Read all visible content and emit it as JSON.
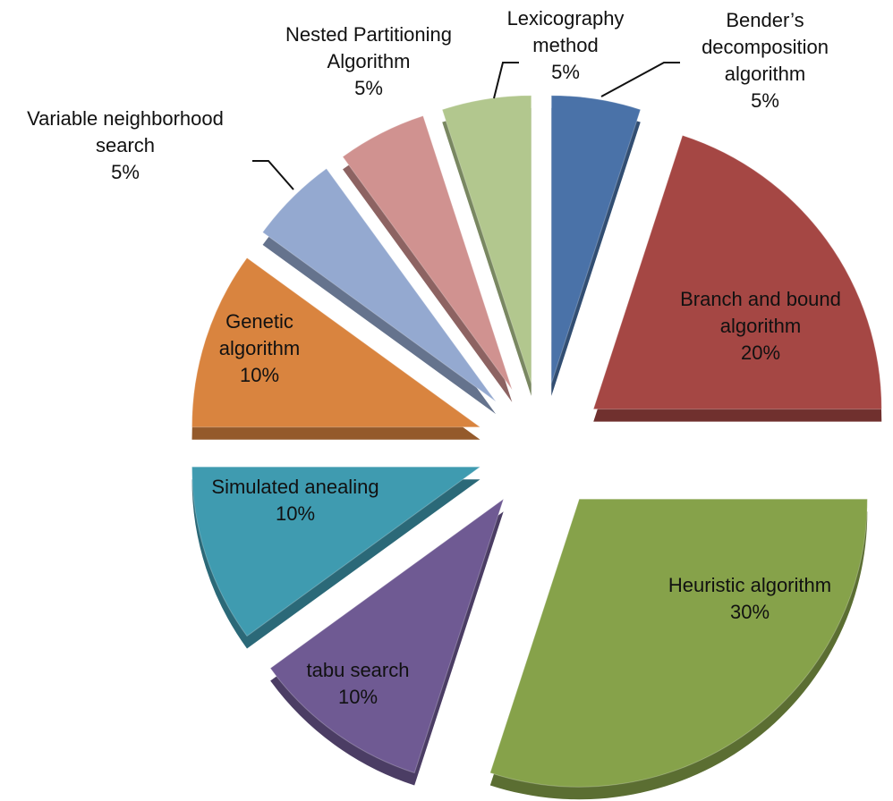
{
  "chart_data": {
    "type": "pie",
    "categories": [
      "Bender’s decomposition algorithm",
      "Branch and bound algorithm",
      "Heuristic algorithm",
      "tabu search",
      "Simulated anealing",
      "Genetic algorithm",
      "Variable neighborhood search",
      "Nested Partitioning Algorithm",
      "Lexicography method"
    ],
    "values": [
      5,
      20,
      30,
      10,
      10,
      10,
      5,
      5,
      5
    ],
    "value_labels": [
      "5%",
      "20%",
      "30%",
      "10%",
      "10%",
      "10%",
      "5%",
      "5%",
      "5%"
    ],
    "colors": [
      "#4a72a8",
      "#a54744",
      "#86a24a",
      "#6f5a93",
      "#3f9bb0",
      "#d9843f",
      "#94a9d0",
      "#d09290",
      "#b2c78e"
    ]
  }
}
